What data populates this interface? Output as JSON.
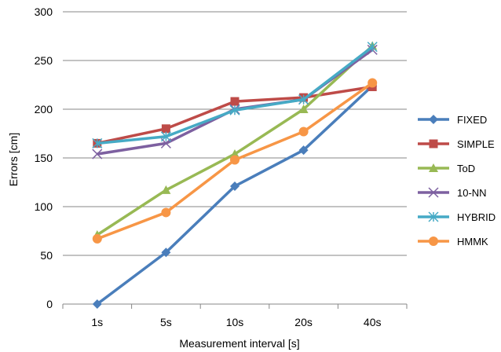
{
  "chart_data": {
    "type": "line",
    "categories": [
      "1s",
      "5s",
      "10s",
      "20s",
      "40s"
    ],
    "xlabel": "Measurement interval [s]",
    "ylabel": "Errors [cm]",
    "ylim": [
      0,
      300
    ],
    "yticks": [
      0,
      50,
      100,
      150,
      200,
      250,
      300
    ],
    "grid": "horizontal",
    "legend_position": "right",
    "series": [
      {
        "name": "FIXED",
        "marker": "diamond",
        "color": "#4A7EBB",
        "values": [
          0,
          53,
          121,
          158,
          224
        ]
      },
      {
        "name": "SIMPLE",
        "marker": "square",
        "color": "#BE4B48",
        "values": [
          165,
          180,
          208,
          212,
          223
        ]
      },
      {
        "name": "ToD",
        "marker": "triangle",
        "color": "#98B954",
        "values": [
          71,
          117,
          154,
          200,
          265
        ]
      },
      {
        "name": "10-NN",
        "marker": "x",
        "color": "#7D60A0",
        "values": [
          154,
          165,
          200,
          210,
          261
        ]
      },
      {
        "name": "HYBRID",
        "marker": "star",
        "color": "#46AAC5",
        "values": [
          165,
          172,
          199,
          210,
          264
        ]
      },
      {
        "name": "HMMK",
        "marker": "circle",
        "color": "#F79646",
        "values": [
          67,
          94,
          148,
          177,
          227
        ]
      }
    ]
  }
}
